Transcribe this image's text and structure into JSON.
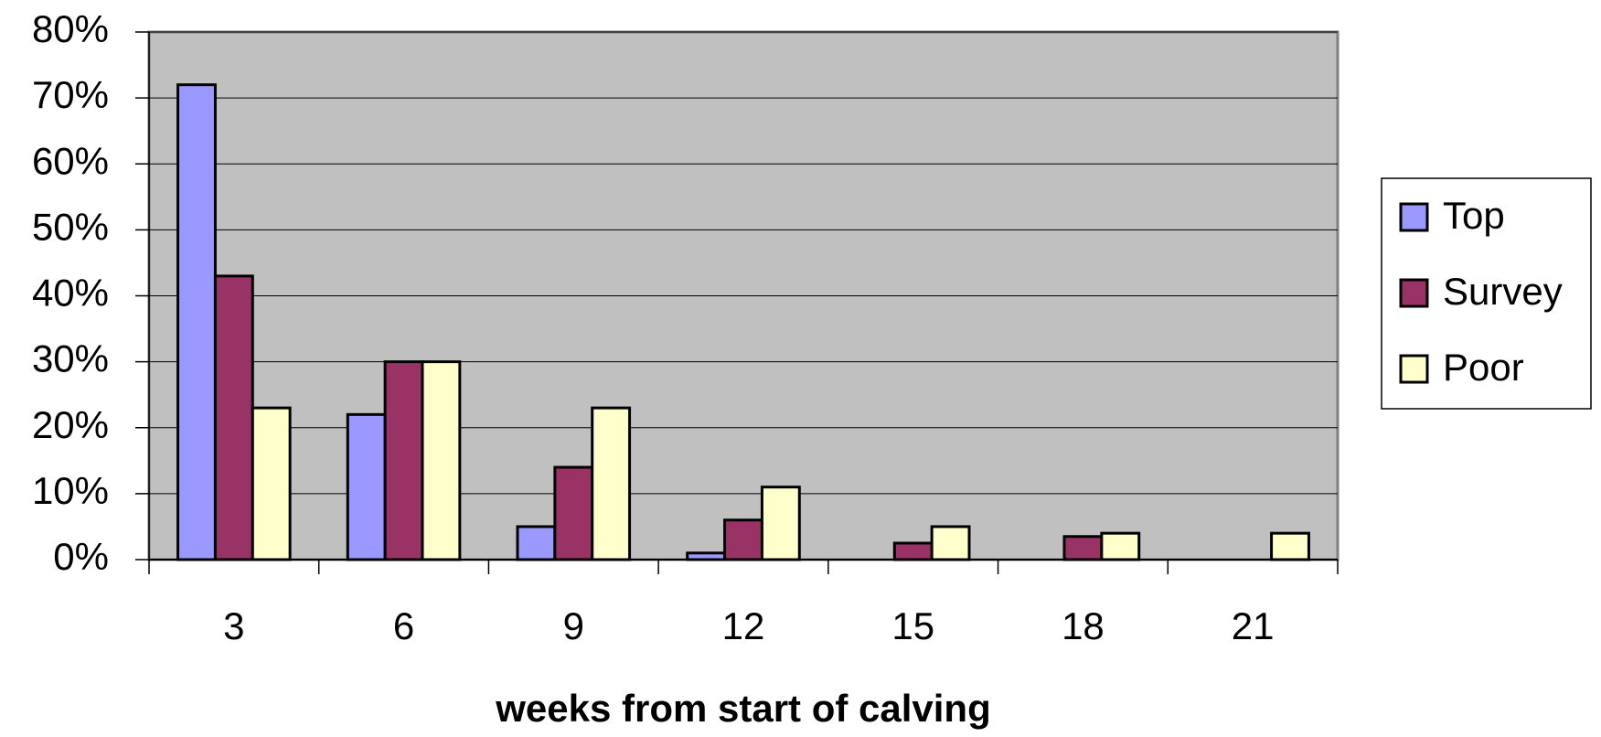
{
  "chart_data": {
    "type": "bar",
    "x_label": "weeks from start of calving",
    "categories": [
      "3",
      "6",
      "9",
      "12",
      "15",
      "18",
      "21"
    ],
    "series": [
      {
        "name": "Top",
        "color": "#9999ff",
        "values": [
          72,
          22,
          5,
          1,
          0,
          0,
          0
        ]
      },
      {
        "name": "Survey",
        "color": "#993366",
        "values": [
          43,
          30,
          14,
          6,
          2.5,
          3.5,
          0
        ]
      },
      {
        "name": "Poor",
        "color": "#ffffcc",
        "values": [
          23,
          30,
          23,
          11,
          5,
          4,
          4
        ]
      }
    ],
    "ylim": [
      0,
      80
    ],
    "yticks": [
      {
        "value": 0,
        "label": "0%"
      },
      {
        "value": 10,
        "label": "10%"
      },
      {
        "value": 20,
        "label": "20%"
      },
      {
        "value": 30,
        "label": "30%"
      },
      {
        "value": 40,
        "label": "40%"
      },
      {
        "value": 50,
        "label": "50%"
      },
      {
        "value": 60,
        "label": "60%"
      },
      {
        "value": 70,
        "label": "70%"
      },
      {
        "value": 80,
        "label": "80%"
      }
    ],
    "grid": true,
    "legend": "right",
    "plot_background": "#c0c0c0"
  }
}
